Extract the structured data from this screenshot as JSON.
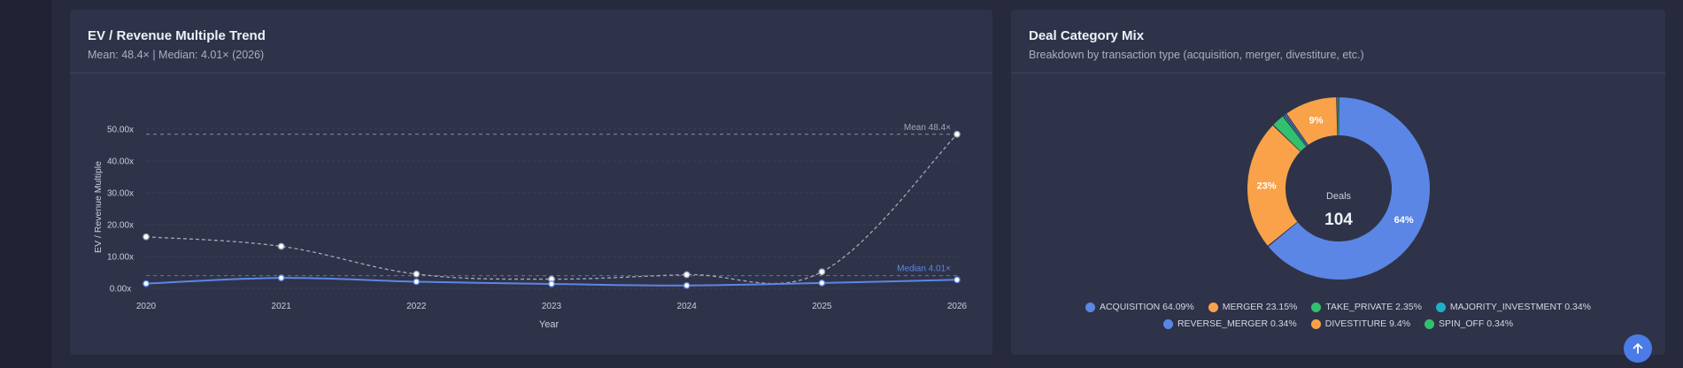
{
  "colors": {
    "background": "#262a3c",
    "card": "#2f3349",
    "accent_blue": "#5b86e5",
    "dashed_line": "#a3a7b8",
    "orange": "#f9a249",
    "green": "#33c06e",
    "cyan": "#1fb0c8"
  },
  "ev_card": {
    "title": "EV / Revenue Multiple Trend",
    "subtitle": "Mean: 48.4× | Median: 4.01× (2026)"
  },
  "deal_card": {
    "title": "Deal Category Mix",
    "subtitle": "Breakdown by transaction type (acquisition, merger, divestiture, etc.)",
    "center_label": "Deals",
    "center_value": "104"
  },
  "scroll_top": {
    "icon": "arrow-up-icon"
  },
  "chart_data": [
    {
      "type": "line",
      "title": "EV / Revenue Multiple Trend",
      "xlabel": "Year",
      "ylabel": "EV / Revenue Multiple",
      "x": [
        2020,
        2021,
        2022,
        2023,
        2024,
        2025,
        2026
      ],
      "x_tick_labels": [
        "2020",
        "2021",
        "2022",
        "2023",
        "2024",
        "2025",
        "2026"
      ],
      "ylim": [
        0,
        50
      ],
      "y_ticks": [
        0,
        10,
        20,
        30,
        40,
        50
      ],
      "y_tick_labels": [
        "0.00x",
        "10.00x",
        "20.00x",
        "30.00x",
        "40.00x",
        "50.00x"
      ],
      "grid": true,
      "series": [
        {
          "values": [
            16.2,
            13.2,
            4.5,
            2.9,
            4.3,
            5.2,
            48.4
          ],
          "color": "#a3a7b8",
          "style": "dashed"
        },
        {
          "values": [
            1.5,
            3.3,
            2.1,
            1.4,
            0.9,
            1.7,
            2.7
          ],
          "color": "#5b86e5",
          "style": "solid"
        }
      ],
      "reference_lines": [
        {
          "label": "Mean 48.4×",
          "value": 48.4,
          "color": "#a3a7b8"
        },
        {
          "label": "Median 4.01×",
          "value": 4.01,
          "color": "#5b86e5"
        }
      ]
    },
    {
      "type": "pie",
      "title": "Deal Category Mix",
      "donut": true,
      "categories": [
        "ACQUISITION",
        "MERGER",
        "TAKE_PRIVATE",
        "MAJORITY_INVESTMENT",
        "REVERSE_MERGER",
        "DIVESTITURE",
        "SPIN_OFF"
      ],
      "values": [
        64.09,
        23.15,
        2.35,
        0.34,
        0.34,
        9.4,
        0.34
      ],
      "colors": [
        "#5b86e5",
        "#f9a249",
        "#33c06e",
        "#1fb0c8",
        "#5b86e5",
        "#f9a249",
        "#33c06e"
      ],
      "slice_labels": [
        "64%",
        "23%",
        "",
        "",
        "",
        "9%",
        ""
      ],
      "legend_labels": [
        "ACQUISITION 64.09%",
        "MERGER 23.15%",
        "TAKE_PRIVATE 2.35%",
        "MAJORITY_INVESTMENT 0.34%",
        "REVERSE_MERGER 0.34%",
        "DIVESTITURE 9.4%",
        "SPIN_OFF 0.34%"
      ]
    }
  ]
}
